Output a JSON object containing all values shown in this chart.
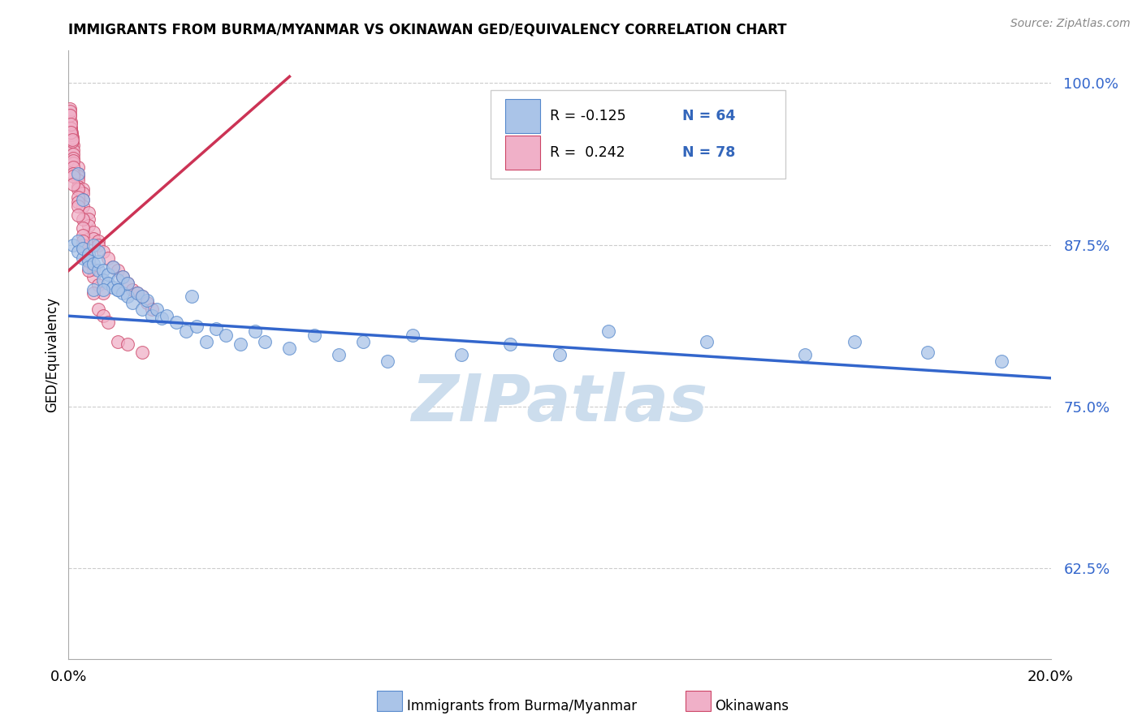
{
  "title": "IMMIGRANTS FROM BURMA/MYANMAR VS OKINAWAN GED/EQUIVALENCY CORRELATION CHART",
  "source": "Source: ZipAtlas.com",
  "ylabel": "GED/Equivalency",
  "xlim": [
    0.0,
    0.2
  ],
  "ylim": [
    0.555,
    1.025
  ],
  "yticks": [
    0.625,
    0.75,
    0.875,
    1.0
  ],
  "ytick_labels": [
    "62.5%",
    "75.0%",
    "87.5%",
    "100.0%"
  ],
  "xtick_labels": [
    "0.0%",
    "20.0%"
  ],
  "watermark_text": "ZIPatlas",
  "watermark_color": "#ccdded",
  "blue_color": "#aac4e8",
  "blue_edge": "#5588cc",
  "pink_color": "#f0b0c8",
  "pink_edge": "#cc4466",
  "blue_line_color": "#3366cc",
  "pink_line_color": "#cc3355",
  "legend_r_color": "#3366bb",
  "legend_n_color": "#3366bb",
  "blue_x": [
    0.001,
    0.002,
    0.002,
    0.003,
    0.003,
    0.004,
    0.004,
    0.004,
    0.005,
    0.005,
    0.006,
    0.006,
    0.006,
    0.007,
    0.007,
    0.008,
    0.008,
    0.009,
    0.009,
    0.01,
    0.01,
    0.011,
    0.011,
    0.012,
    0.012,
    0.013,
    0.014,
    0.015,
    0.016,
    0.017,
    0.018,
    0.019,
    0.02,
    0.022,
    0.024,
    0.026,
    0.028,
    0.03,
    0.032,
    0.035,
    0.038,
    0.04,
    0.045,
    0.05,
    0.055,
    0.06,
    0.065,
    0.07,
    0.08,
    0.09,
    0.1,
    0.11,
    0.13,
    0.15,
    0.16,
    0.175,
    0.19,
    0.002,
    0.003,
    0.005,
    0.007,
    0.01,
    0.015,
    0.025
  ],
  "blue_y": [
    0.875,
    0.878,
    0.87,
    0.865,
    0.872,
    0.868,
    0.863,
    0.858,
    0.86,
    0.875,
    0.855,
    0.862,
    0.87,
    0.855,
    0.848,
    0.852,
    0.845,
    0.858,
    0.842,
    0.848,
    0.84,
    0.85,
    0.838,
    0.835,
    0.845,
    0.83,
    0.838,
    0.825,
    0.832,
    0.82,
    0.825,
    0.818,
    0.82,
    0.815,
    0.808,
    0.812,
    0.8,
    0.81,
    0.805,
    0.798,
    0.808,
    0.8,
    0.795,
    0.805,
    0.79,
    0.8,
    0.785,
    0.805,
    0.79,
    0.798,
    0.79,
    0.808,
    0.8,
    0.79,
    0.8,
    0.792,
    0.785,
    0.93,
    0.91,
    0.84,
    0.84,
    0.84,
    0.835,
    0.835
  ],
  "pink_x": [
    0.0002,
    0.0003,
    0.0004,
    0.0005,
    0.0006,
    0.0007,
    0.0008,
    0.0009,
    0.001,
    0.001,
    0.001,
    0.001,
    0.002,
    0.002,
    0.002,
    0.002,
    0.002,
    0.003,
    0.003,
    0.003,
    0.003,
    0.004,
    0.004,
    0.004,
    0.005,
    0.005,
    0.006,
    0.006,
    0.007,
    0.008,
    0.009,
    0.01,
    0.011,
    0.012,
    0.013,
    0.014,
    0.015,
    0.016,
    0.017,
    0.0003,
    0.0005,
    0.0006,
    0.0008,
    0.001,
    0.001,
    0.001,
    0.002,
    0.002,
    0.002,
    0.003,
    0.003,
    0.003,
    0.003,
    0.004,
    0.004,
    0.005,
    0.005,
    0.006,
    0.007,
    0.0002,
    0.0004,
    0.0005,
    0.0007,
    0.001,
    0.001,
    0.002,
    0.002,
    0.003,
    0.003,
    0.004,
    0.005,
    0.006,
    0.007,
    0.008,
    0.01,
    0.012,
    0.015
  ],
  "pink_y": [
    0.98,
    0.975,
    0.97,
    0.965,
    0.962,
    0.958,
    0.955,
    0.952,
    0.948,
    0.945,
    0.942,
    0.938,
    0.935,
    0.93,
    0.928,
    0.925,
    0.92,
    0.918,
    0.915,
    0.91,
    0.905,
    0.9,
    0.895,
    0.89,
    0.885,
    0.88,
    0.878,
    0.875,
    0.87,
    0.865,
    0.858,
    0.855,
    0.85,
    0.845,
    0.84,
    0.838,
    0.835,
    0.83,
    0.825,
    0.978,
    0.965,
    0.96,
    0.955,
    0.94,
    0.935,
    0.93,
    0.918,
    0.912,
    0.908,
    0.895,
    0.888,
    0.882,
    0.875,
    0.868,
    0.862,
    0.856,
    0.85,
    0.844,
    0.838,
    0.975,
    0.968,
    0.962,
    0.956,
    0.928,
    0.922,
    0.905,
    0.898,
    0.878,
    0.872,
    0.855,
    0.838,
    0.825,
    0.82,
    0.815,
    0.8,
    0.798,
    0.792
  ],
  "blue_trend_x": [
    0.0,
    0.2
  ],
  "blue_trend_y": [
    0.82,
    0.772
  ],
  "pink_trend_x": [
    0.0,
    0.045
  ],
  "pink_trend_y": [
    0.855,
    1.005
  ]
}
